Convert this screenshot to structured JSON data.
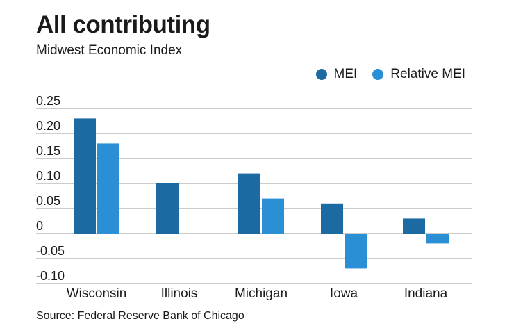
{
  "header": {
    "title": "All contributing",
    "subtitle": "Midwest Economic Index"
  },
  "legend": [
    {
      "label": "MEI",
      "color": "#1c6aa2"
    },
    {
      "label": "Relative MEI",
      "color": "#2b8fd6"
    }
  ],
  "footer": {
    "source": "Source: Federal Reserve Bank of Chicago"
  },
  "chart_data": {
    "type": "bar",
    "title": "All contributing",
    "subtitle": "Midwest Economic Index",
    "categories": [
      "Wisconsin",
      "Illinois",
      "Michigan",
      "Iowa",
      "Indiana"
    ],
    "series": [
      {
        "name": "MEI",
        "color": "#1c6aa2",
        "values": [
          0.23,
          0.1,
          0.12,
          0.06,
          0.03
        ]
      },
      {
        "name": "Relative MEI",
        "color": "#2b8fd6",
        "values": [
          0.18,
          null,
          0.07,
          -0.07,
          -0.02
        ]
      }
    ],
    "ylim": [
      -0.1,
      0.25
    ],
    "yticks": [
      0.25,
      0.2,
      0.15,
      0.1,
      0.05,
      0,
      -0.05,
      -0.1
    ],
    "ytick_labels": [
      "0.25",
      "0.20",
      "0.15",
      "0.10",
      "0.05",
      "0",
      "-0.05",
      "-0.10"
    ],
    "xlabel": "",
    "ylabel": "",
    "grid": true,
    "legend_position": "top-right"
  }
}
